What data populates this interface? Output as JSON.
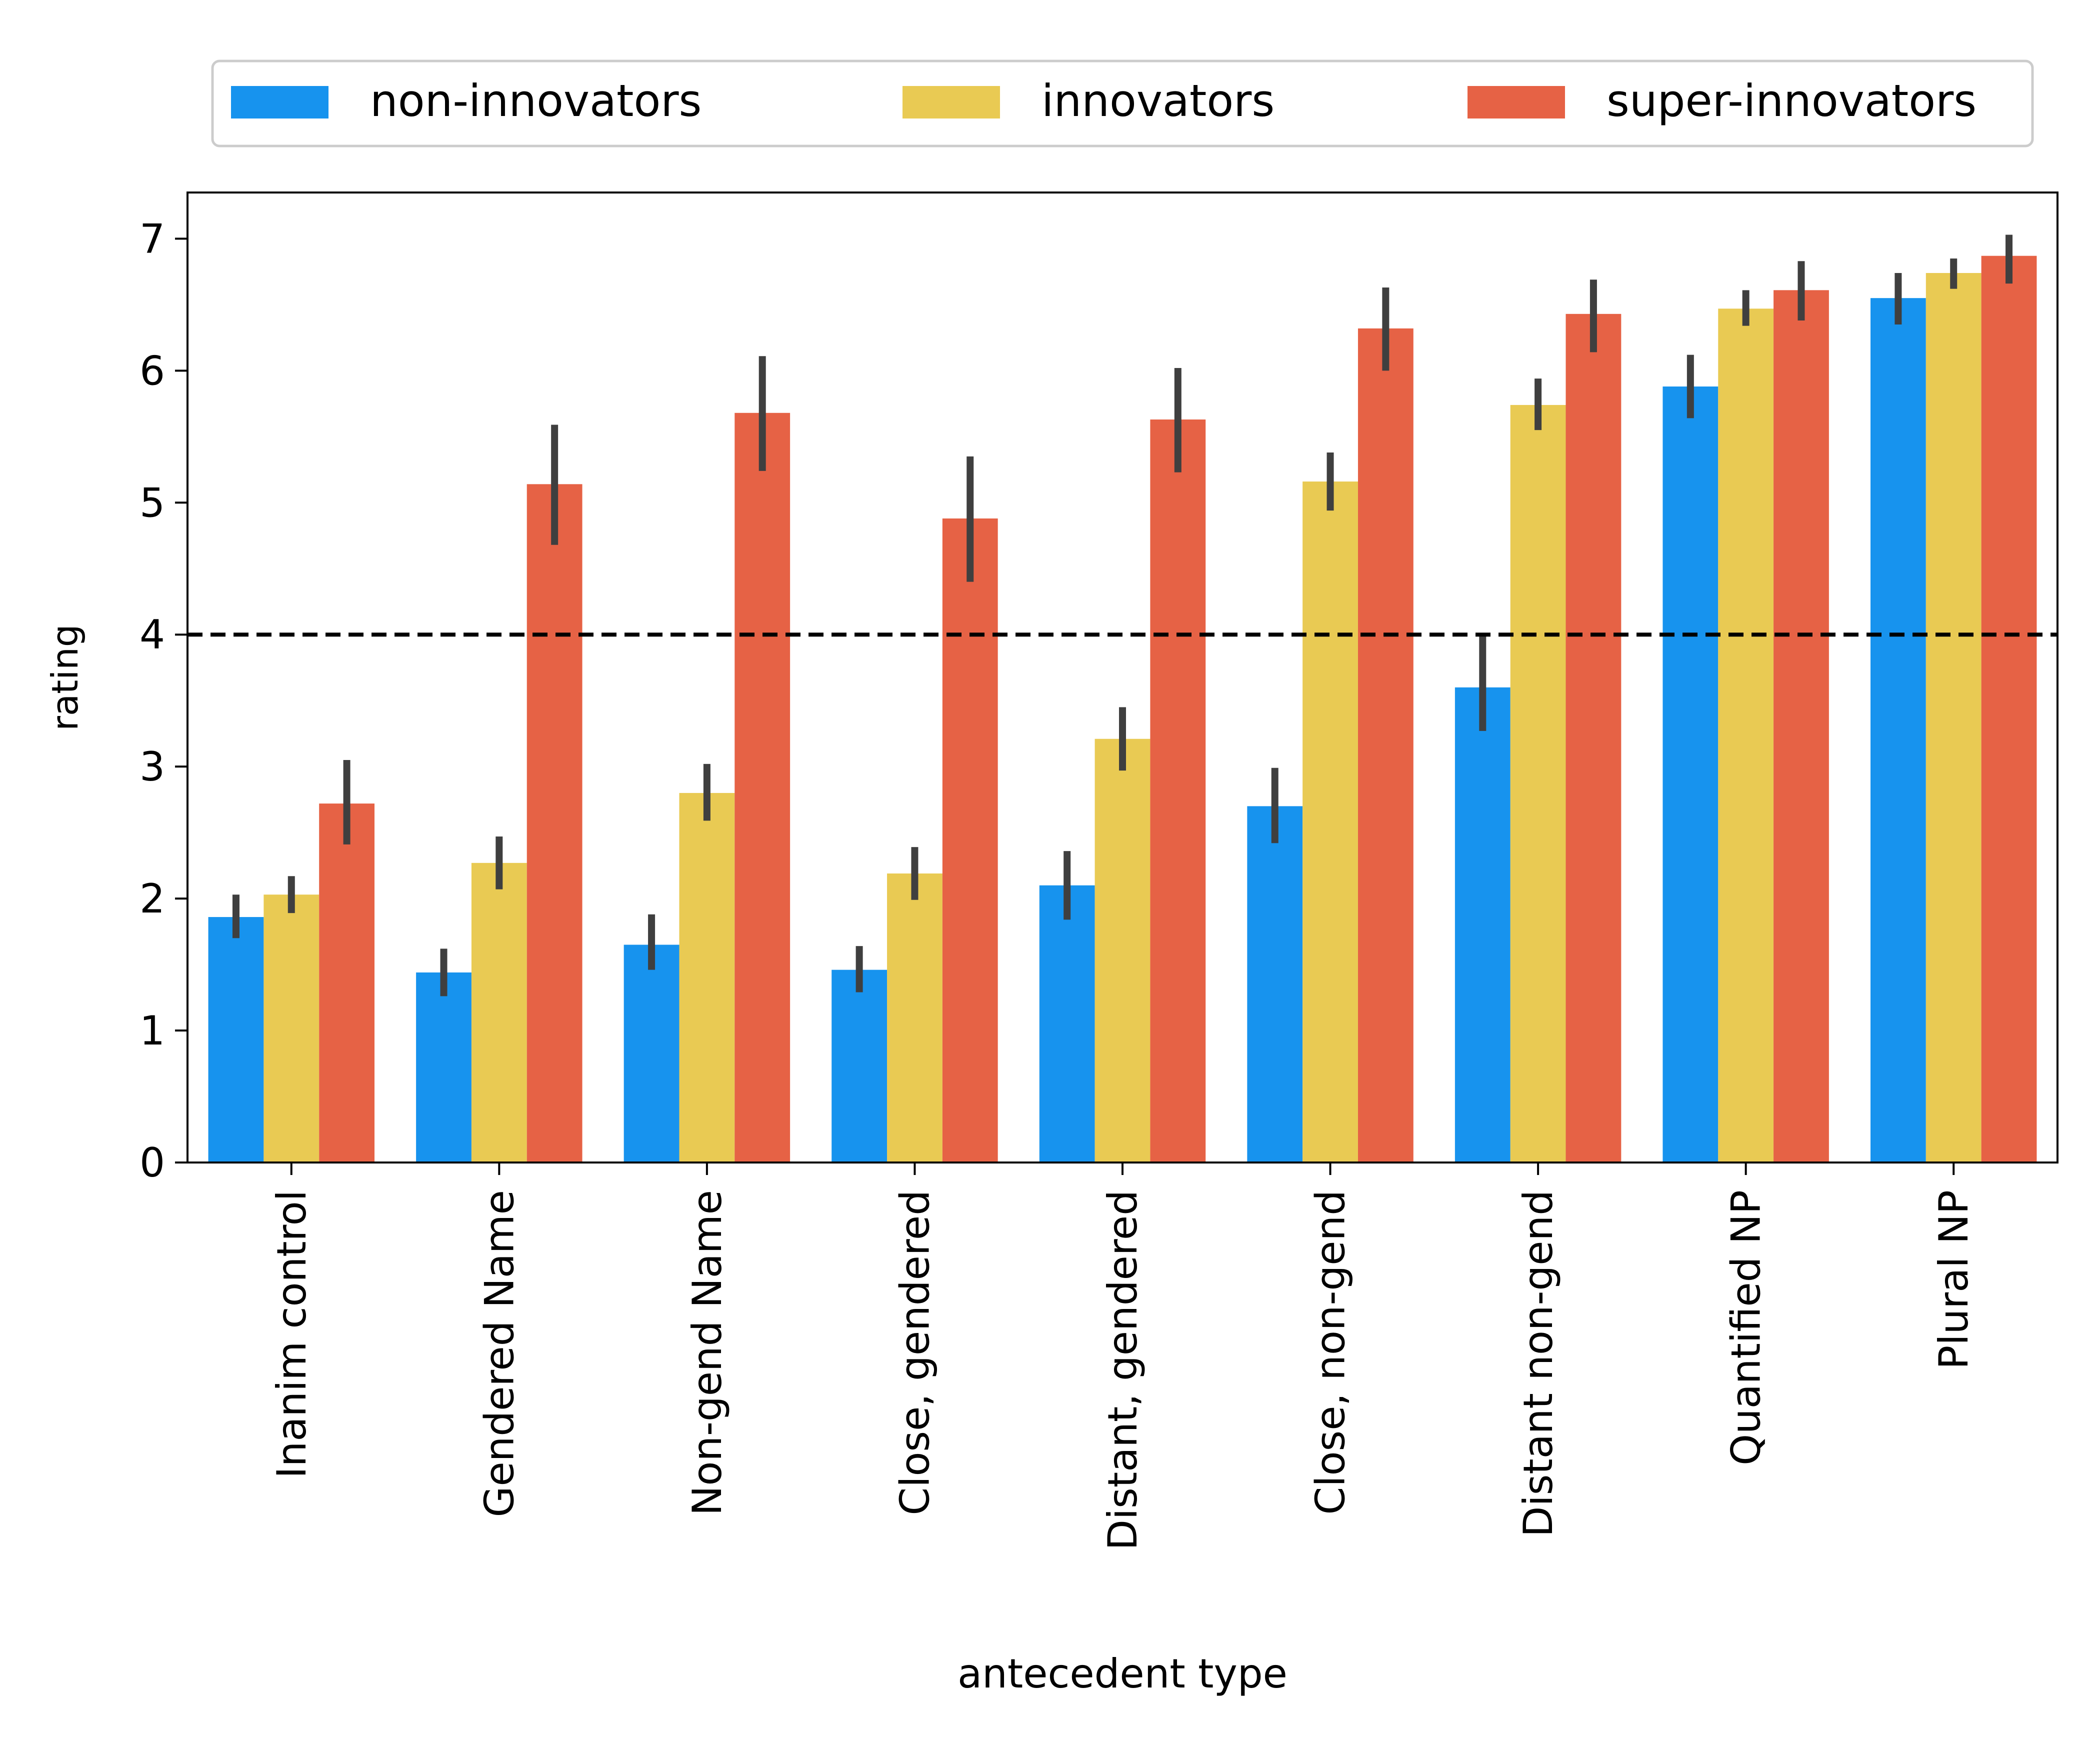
{
  "chart_data": {
    "type": "bar",
    "title": "",
    "xlabel": "antecedent type",
    "ylabel": "rating",
    "ylim": [
      0,
      7.35
    ],
    "yticks": [
      0,
      1,
      2,
      3,
      4,
      5,
      6,
      7
    ],
    "reference_line": {
      "y": 4,
      "style": "dashed",
      "color": "#000000"
    },
    "legend_position": "top",
    "grid": false,
    "categories": [
      "Inanim control",
      "Gendered Name",
      "Non-gend Name",
      "Close, gendered",
      "Distant, gendered",
      "Close, non-gend",
      "Distant non-gend",
      "Quantified NP",
      "Plural NP"
    ],
    "series": [
      {
        "name": "non-innovators",
        "color": "#1793EE",
        "values": [
          1.86,
          1.44,
          1.65,
          1.46,
          2.1,
          2.7,
          3.6,
          5.88,
          6.55
        ],
        "ci_low": [
          1.7,
          1.26,
          1.46,
          1.29,
          1.84,
          2.42,
          3.27,
          5.64,
          6.35
        ],
        "ci_high": [
          2.03,
          1.62,
          1.88,
          1.64,
          2.36,
          2.99,
          4.0,
          6.12,
          6.74
        ]
      },
      {
        "name": "innovators",
        "color": "#E9CA53",
        "values": [
          2.03,
          2.27,
          2.8,
          2.19,
          3.21,
          5.16,
          5.74,
          6.47,
          6.74
        ],
        "ci_low": [
          1.89,
          2.07,
          2.59,
          1.99,
          2.97,
          4.94,
          5.55,
          6.34,
          6.62
        ],
        "ci_high": [
          2.17,
          2.47,
          3.02,
          2.39,
          3.45,
          5.38,
          5.94,
          6.61,
          6.85
        ]
      },
      {
        "name": "super-innovators",
        "color": "#E66245",
        "values": [
          2.72,
          5.14,
          5.68,
          4.88,
          5.63,
          6.32,
          6.43,
          6.61,
          6.87
        ],
        "ci_low": [
          2.41,
          4.68,
          5.24,
          4.4,
          5.23,
          6.0,
          6.14,
          6.38,
          6.66
        ],
        "ci_high": [
          3.05,
          5.59,
          6.11,
          5.35,
          6.02,
          6.63,
          6.69,
          6.83,
          7.03
        ]
      }
    ]
  }
}
